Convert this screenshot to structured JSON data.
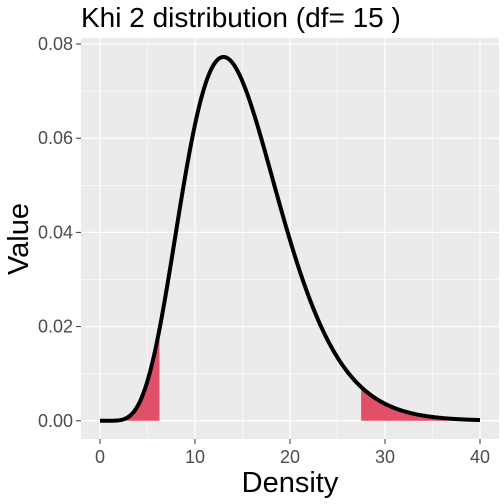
{
  "chart_data": {
    "type": "area",
    "title": "Khi 2 distribution (df= 15 )",
    "xlabel": "Density",
    "ylabel": "Value",
    "df": 15,
    "xlim": [
      0,
      40
    ],
    "ylim": [
      0,
      0.08
    ],
    "x_ticks": [
      0,
      10,
      20,
      30,
      40
    ],
    "x_tick_labels": [
      "0",
      "10",
      "20",
      "30",
      "40"
    ],
    "y_ticks": [
      0,
      0.02,
      0.04,
      0.06,
      0.08
    ],
    "y_tick_labels": [
      "0.00",
      "0.02",
      "0.04",
      "0.06",
      "0.08"
    ],
    "grid": true,
    "shaded_regions": [
      {
        "from": 0,
        "to": 6.26
      },
      {
        "from": 27.49,
        "to": 40
      }
    ],
    "colors": {
      "panel": "#ebebeb",
      "grid_major": "#ffffff",
      "curve": "#000000",
      "shade": "#e05068"
    }
  }
}
